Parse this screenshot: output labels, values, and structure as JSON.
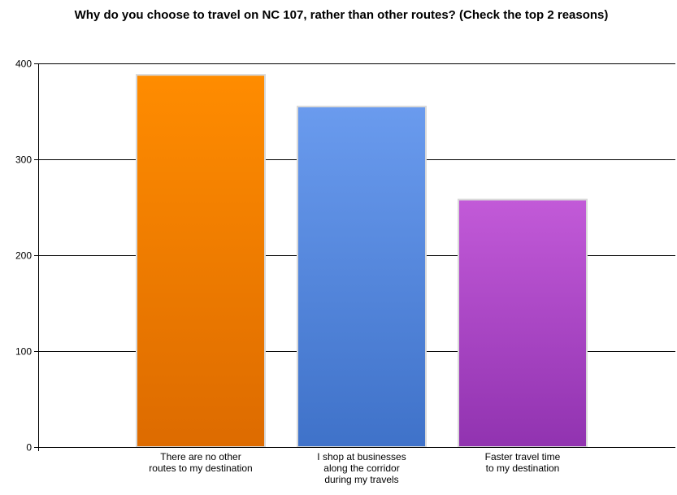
{
  "chart_data": {
    "type": "bar",
    "title": "Why do you choose to travel on NC 107, rather than other routes? (Check the top 2 reasons)",
    "categories": [
      "There are no other routes to my destination",
      "I shop at businesses along the corridor during my travels",
      "Faster travel time to my destination"
    ],
    "category_lines": [
      [
        "There are no other",
        "routes to my destination"
      ],
      [
        "I shop at businesses",
        "along the corridor",
        "during my travels"
      ],
      [
        "Faster travel time",
        "to my destination"
      ]
    ],
    "values": [
      388,
      355,
      258
    ],
    "ylim": [
      0,
      400
    ],
    "yticks": [
      0,
      100,
      200,
      300,
      400
    ],
    "xlabel": "",
    "ylabel": "",
    "grid": true,
    "legend": "none",
    "colors": [
      {
        "top": "#ff8c00",
        "bottom": "#dd6b00"
      },
      {
        "top": "#6a9bee",
        "bottom": "#3f72c9"
      },
      {
        "top": "#c25ad8",
        "bottom": "#9133b0"
      }
    ]
  }
}
